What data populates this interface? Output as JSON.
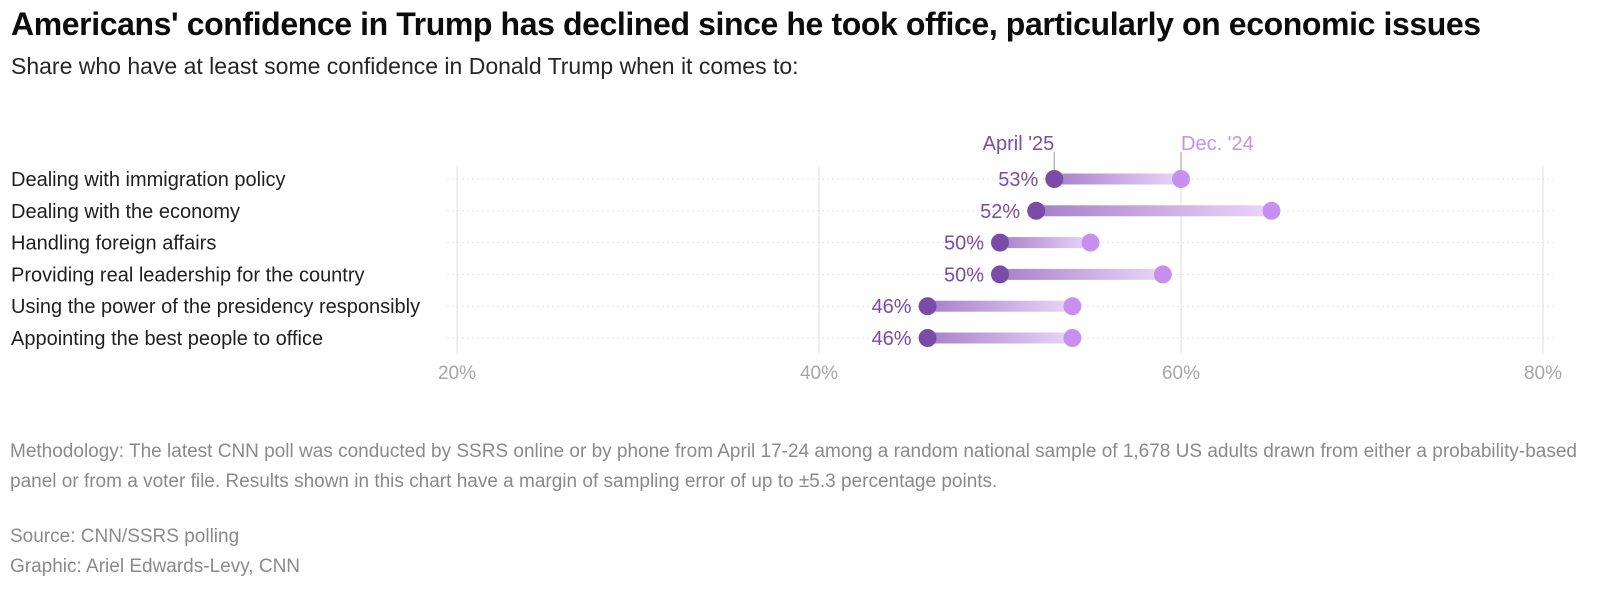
{
  "title": "Americans' confidence in Trump has declined since he took office, particularly on economic issues",
  "subtitle": "Share who have at least some confidence in Donald Trump when it comes to:",
  "chart_data": {
    "type": "dumbbell",
    "categories": [
      "Dealing with immigration policy",
      "Dealing with the economy",
      "Handling foreign affairs",
      "Providing real leadership for the country",
      "Using the power of the presidency responsibly",
      "Appointing the best people to office"
    ],
    "series": [
      {
        "name": "April '25",
        "values": [
          53,
          52,
          50,
          50,
          46,
          46
        ],
        "labels": [
          "53%",
          "52%",
          "50%",
          "50%",
          "46%",
          "46%"
        ],
        "color": "#7b4ba8"
      },
      {
        "name": "Dec. '24",
        "values": [
          60,
          65,
          55,
          59,
          54,
          54
        ],
        "color": "#c790ee"
      }
    ],
    "xlim": [
      20,
      80
    ],
    "xticks": [
      20,
      40,
      60,
      80
    ],
    "xtick_labels": [
      "20%",
      "40%",
      "60%",
      "80%"
    ],
    "grid": true
  },
  "methodology": "Methodology: The latest CNN poll was conducted by SSRS online or by phone from April 17-24 among a random national sample of 1,678 US adults drawn from either a probability-based panel or from a voter file. Results shown in this chart have a margin of sampling error of up to ±5.3 percentage points.",
  "source": "Source: CNN/SSRS polling",
  "graphic_credit": "Graphic: Ariel Edwards-Levy, CNN"
}
